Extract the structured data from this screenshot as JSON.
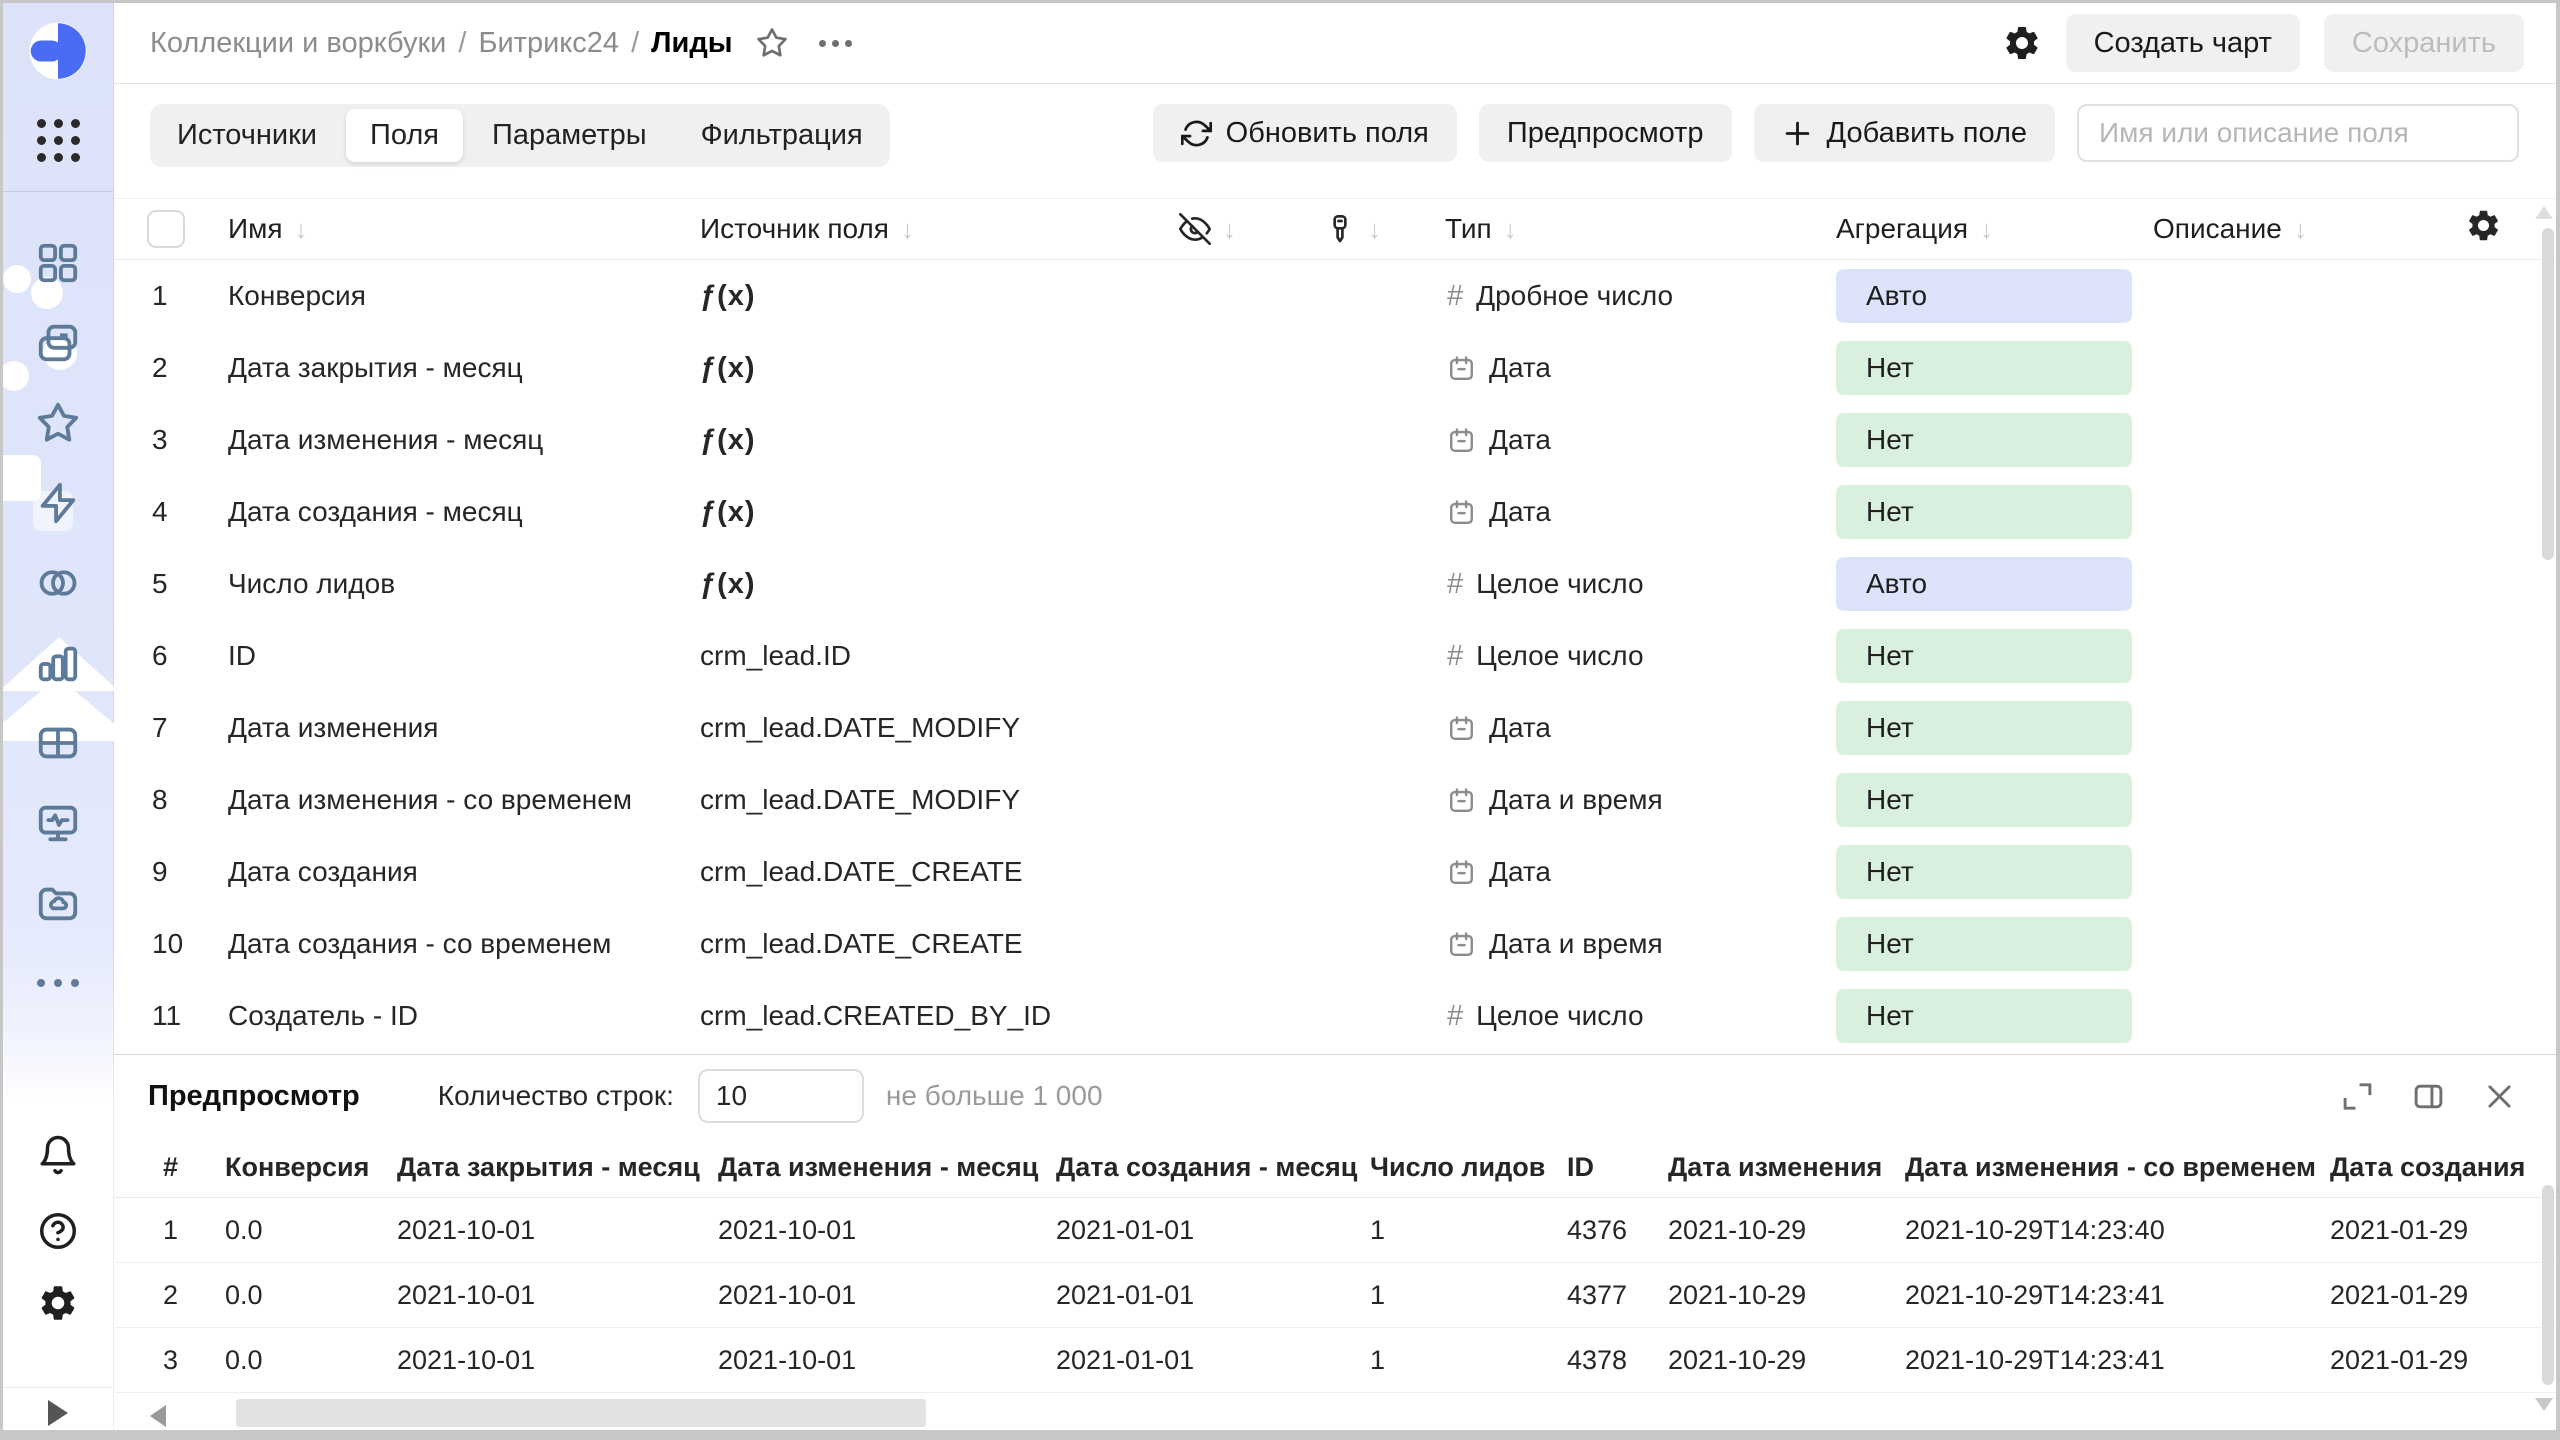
{
  "header": {
    "breadcrumbs": [
      "Коллекции и воркбуки",
      "Битрикс24",
      "Лиды"
    ],
    "breadcrumb_separator": "/",
    "create_chart_label": "Создать чарт",
    "save_label": "Сохранить"
  },
  "toolbar": {
    "tabs": [
      {
        "label": "Источники"
      },
      {
        "label": "Поля"
      },
      {
        "label": "Параметры"
      },
      {
        "label": "Фильтрация"
      }
    ],
    "active_tab": "Поля",
    "refresh_fields_label": "Обновить поля",
    "preview_label": "Предпросмотр",
    "add_field_label": "Добавить поле",
    "search_placeholder": "Имя или описание поля"
  },
  "fields_table": {
    "columns": {
      "name": "Имя",
      "source": "Источник поля",
      "type": "Тип",
      "aggregation": "Агрегация",
      "description": "Описание"
    },
    "rows": [
      {
        "num": 1,
        "name": "Конверсия",
        "source_kind": "formula",
        "source": "",
        "type": "Дробное число",
        "type_kind": "number",
        "aggregation": "Авто",
        "agg_kind": "auto"
      },
      {
        "num": 2,
        "name": "Дата закрытия - месяц",
        "source_kind": "formula",
        "source": "",
        "type": "Дата",
        "type_kind": "date",
        "aggregation": "Нет",
        "agg_kind": "none"
      },
      {
        "num": 3,
        "name": "Дата изменения - месяц",
        "source_kind": "formula",
        "source": "",
        "type": "Дата",
        "type_kind": "date",
        "aggregation": "Нет",
        "agg_kind": "none"
      },
      {
        "num": 4,
        "name": "Дата создания - месяц",
        "source_kind": "formula",
        "source": "",
        "type": "Дата",
        "type_kind": "date",
        "aggregation": "Нет",
        "agg_kind": "none"
      },
      {
        "num": 5,
        "name": "Число лидов",
        "source_kind": "formula",
        "source": "",
        "type": "Целое число",
        "type_kind": "number",
        "aggregation": "Авто",
        "agg_kind": "auto"
      },
      {
        "num": 6,
        "name": "ID",
        "source_kind": "column",
        "source": "crm_lead.ID",
        "type": "Целое число",
        "type_kind": "number",
        "aggregation": "Нет",
        "agg_kind": "none"
      },
      {
        "num": 7,
        "name": "Дата изменения",
        "source_kind": "column",
        "source": "crm_lead.DATE_MODIFY",
        "type": "Дата",
        "type_kind": "date",
        "aggregation": "Нет",
        "agg_kind": "none"
      },
      {
        "num": 8,
        "name": "Дата изменения - со временем",
        "source_kind": "column",
        "source": "crm_lead.DATE_MODIFY",
        "type": "Дата и время",
        "type_kind": "datetime",
        "aggregation": "Нет",
        "agg_kind": "none"
      },
      {
        "num": 9,
        "name": "Дата создания",
        "source_kind": "column",
        "source": "crm_lead.DATE_CREATE",
        "type": "Дата",
        "type_kind": "date",
        "aggregation": "Нет",
        "agg_kind": "none"
      },
      {
        "num": 10,
        "name": "Дата создания - со временем",
        "source_kind": "column",
        "source": "crm_lead.DATE_CREATE",
        "type": "Дата и время",
        "type_kind": "datetime",
        "aggregation": "Нет",
        "agg_kind": "none"
      },
      {
        "num": 11,
        "name": "Создатель - ID",
        "source_kind": "column",
        "source": "crm_lead.CREATED_BY_ID",
        "type": "Целое число",
        "type_kind": "number",
        "aggregation": "Нет",
        "agg_kind": "none"
      }
    ]
  },
  "preview": {
    "title": "Предпросмотр",
    "row_count_label": "Количество строк:",
    "row_count_value": "10",
    "hint": "не больше 1 000",
    "columns": [
      "#",
      "Конверсия",
      "Дата закрытия - месяц",
      "Дата изменения - месяц",
      "Дата создания - месяц",
      "Число лидов",
      "ID",
      "Дата изменения",
      "Дата изменения - со временем",
      "Дата создания"
    ],
    "rows": [
      [
        "1",
        "0.0",
        "2021-10-01",
        "2021-10-01",
        "2021-01-01",
        "1",
        "4376",
        "2021-10-29",
        "2021-10-29T14:23:40",
        "2021-01-29"
      ],
      [
        "2",
        "0.0",
        "2021-10-01",
        "2021-10-01",
        "2021-01-01",
        "1",
        "4377",
        "2021-10-29",
        "2021-10-29T14:23:41",
        "2021-01-29"
      ],
      [
        "3",
        "0.0",
        "2021-10-01",
        "2021-10-01",
        "2021-01-01",
        "1",
        "4378",
        "2021-10-29",
        "2021-10-29T14:23:41",
        "2021-01-29"
      ]
    ]
  },
  "icons": {
    "formula_glyph": "ƒ(x)",
    "number_glyph": "#",
    "sort_arrow_glyph": "↓",
    "names": [
      "datalens-logo",
      "apps-grid-icon",
      "grid-icon",
      "folders-icon",
      "star-icon",
      "lightning-icon",
      "linked-circles-icon",
      "bar-chart-icon",
      "table-icon",
      "monitor-icon",
      "cloud-folder-icon",
      "ellipsis-icon",
      "bell-icon",
      "help-icon",
      "gear-icon",
      "refresh-icon",
      "plus-icon",
      "eye-off-icon",
      "key-icon",
      "calendar-icon",
      "expand-icon",
      "split-panel-icon",
      "close-icon"
    ]
  },
  "colors": {
    "accent_blue": "#4a6cf5",
    "sidebar_bg": "#dce3f9",
    "badge_auto_bg": "#dce3fa",
    "badge_none_bg": "#d8f0dd",
    "button_bg": "#f0f0f1",
    "sidebar_icon": "#5d7b99"
  }
}
